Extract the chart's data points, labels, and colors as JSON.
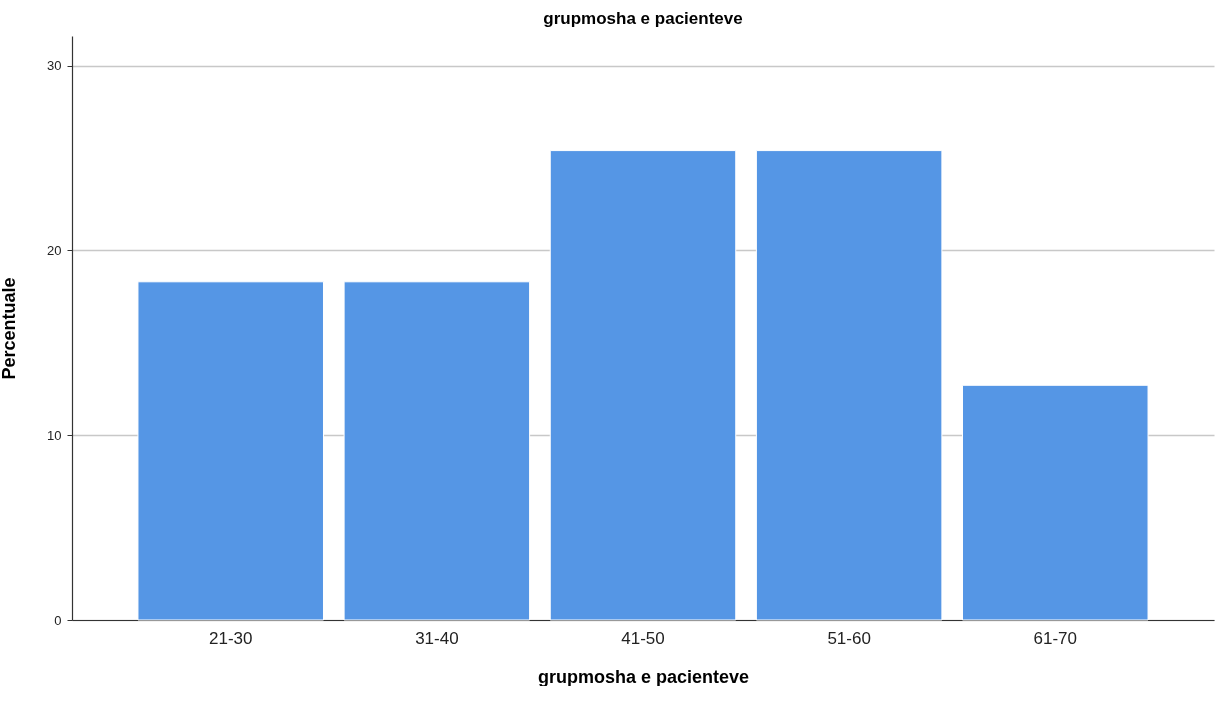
{
  "chart_data": {
    "type": "bar",
    "title": "grupmosha e pacienteve",
    "xlabel": "grupmosha e pacienteve",
    "ylabel": "Percentuale",
    "categories": [
      "21-30",
      "31-40",
      "41-50",
      "51-60",
      "61-70"
    ],
    "values": [
      18.3,
      18.3,
      25.4,
      25.4,
      12.7
    ],
    "color": "#5596e5",
    "ylim": [
      0,
      31.6
    ],
    "yticks": [
      0,
      10,
      20,
      30
    ],
    "grid": "y"
  }
}
